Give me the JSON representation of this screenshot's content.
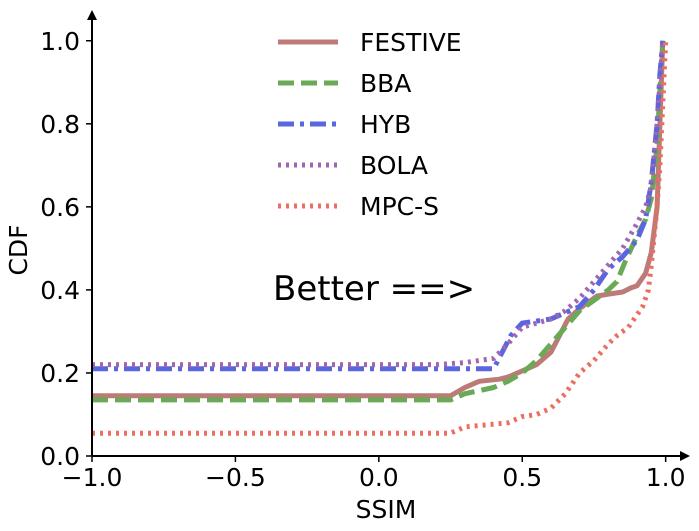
{
  "chart_data": {
    "type": "line",
    "title": "",
    "xlabel": "SSIM",
    "ylabel": "CDF",
    "xlim": [
      -1.0,
      1.05
    ],
    "ylim": [
      0.0,
      1.05
    ],
    "x_ticks": [
      -1.0,
      -0.5,
      0.0,
      0.5,
      1.0
    ],
    "x_tick_labels": [
      "−1.0",
      "−0.5",
      "0.0",
      "0.5",
      "1.0"
    ],
    "y_ticks": [
      0.0,
      0.2,
      0.4,
      0.6,
      0.8,
      1.0
    ],
    "y_tick_labels": [
      "0.0",
      "0.2",
      "0.4",
      "0.6",
      "0.8",
      "1.0"
    ],
    "grid": false,
    "legend_position": "top-center",
    "annotation": "Better ==>",
    "series": [
      {
        "name": "FESTIVE",
        "color": "#bc7b76",
        "style": "solid",
        "points": [
          [
            -1.0,
            0.145
          ],
          [
            0.25,
            0.145
          ],
          [
            0.3,
            0.165
          ],
          [
            0.35,
            0.18
          ],
          [
            0.42,
            0.185
          ],
          [
            0.45,
            0.19
          ],
          [
            0.5,
            0.205
          ],
          [
            0.55,
            0.22
          ],
          [
            0.6,
            0.25
          ],
          [
            0.63,
            0.29
          ],
          [
            0.66,
            0.33
          ],
          [
            0.7,
            0.355
          ],
          [
            0.73,
            0.37
          ],
          [
            0.76,
            0.385
          ],
          [
            0.8,
            0.39
          ],
          [
            0.85,
            0.395
          ],
          [
            0.88,
            0.405
          ],
          [
            0.9,
            0.41
          ],
          [
            0.93,
            0.44
          ],
          [
            0.95,
            0.49
          ],
          [
            0.97,
            0.6
          ],
          [
            0.98,
            0.8
          ],
          [
            0.99,
            1.0
          ]
        ]
      },
      {
        "name": "BBA",
        "color": "#6aa956",
        "style": "dashed",
        "points": [
          [
            -1.0,
            0.135
          ],
          [
            0.25,
            0.135
          ],
          [
            0.3,
            0.15
          ],
          [
            0.4,
            0.165
          ],
          [
            0.45,
            0.18
          ],
          [
            0.5,
            0.2
          ],
          [
            0.55,
            0.23
          ],
          [
            0.6,
            0.27
          ],
          [
            0.65,
            0.31
          ],
          [
            0.7,
            0.35
          ],
          [
            0.75,
            0.375
          ],
          [
            0.8,
            0.4
          ],
          [
            0.83,
            0.42
          ],
          [
            0.86,
            0.47
          ],
          [
            0.9,
            0.53
          ],
          [
            0.93,
            0.57
          ],
          [
            0.95,
            0.62
          ],
          [
            0.97,
            0.75
          ],
          [
            0.98,
            0.88
          ],
          [
            0.99,
            1.0
          ]
        ]
      },
      {
        "name": "HYB",
        "color": "#5a65e0",
        "style": "dashdot",
        "points": [
          [
            -1.0,
            0.21
          ],
          [
            0.4,
            0.21
          ],
          [
            0.43,
            0.25
          ],
          [
            0.46,
            0.29
          ],
          [
            0.5,
            0.32
          ],
          [
            0.6,
            0.33
          ],
          [
            0.65,
            0.345
          ],
          [
            0.7,
            0.36
          ],
          [
            0.75,
            0.4
          ],
          [
            0.8,
            0.45
          ],
          [
            0.85,
            0.48
          ],
          [
            0.9,
            0.52
          ],
          [
            0.93,
            0.57
          ],
          [
            0.95,
            0.66
          ],
          [
            0.97,
            0.8
          ],
          [
            0.98,
            0.92
          ],
          [
            0.99,
            1.0
          ]
        ]
      },
      {
        "name": "BOLA",
        "color": "#a165b2",
        "style": "dotted",
        "points": [
          [
            -1.0,
            0.22
          ],
          [
            0.2,
            0.22
          ],
          [
            0.3,
            0.225
          ],
          [
            0.4,
            0.235
          ],
          [
            0.45,
            0.27
          ],
          [
            0.5,
            0.31
          ],
          [
            0.55,
            0.32
          ],
          [
            0.6,
            0.33
          ],
          [
            0.65,
            0.35
          ],
          [
            0.7,
            0.38
          ],
          [
            0.75,
            0.42
          ],
          [
            0.8,
            0.46
          ],
          [
            0.85,
            0.5
          ],
          [
            0.9,
            0.56
          ],
          [
            0.93,
            0.6
          ],
          [
            0.95,
            0.65
          ],
          [
            0.97,
            0.8
          ],
          [
            0.98,
            0.9
          ],
          [
            0.99,
            1.0
          ]
        ]
      },
      {
        "name": "MPC-S",
        "color": "#eb6e63",
        "style": "dotted",
        "points": [
          [
            -1.0,
            0.055
          ],
          [
            0.25,
            0.055
          ],
          [
            0.3,
            0.07
          ],
          [
            0.45,
            0.08
          ],
          [
            0.5,
            0.095
          ],
          [
            0.55,
            0.1
          ],
          [
            0.6,
            0.115
          ],
          [
            0.65,
            0.15
          ],
          [
            0.7,
            0.2
          ],
          [
            0.75,
            0.23
          ],
          [
            0.8,
            0.27
          ],
          [
            0.83,
            0.29
          ],
          [
            0.87,
            0.31
          ],
          [
            0.9,
            0.34
          ],
          [
            0.92,
            0.36
          ],
          [
            0.94,
            0.4
          ],
          [
            0.95,
            0.46
          ],
          [
            0.96,
            0.53
          ],
          [
            0.97,
            0.6
          ],
          [
            0.98,
            0.7
          ],
          [
            0.99,
            0.85
          ],
          [
            1.0,
            1.0
          ]
        ]
      }
    ]
  }
}
